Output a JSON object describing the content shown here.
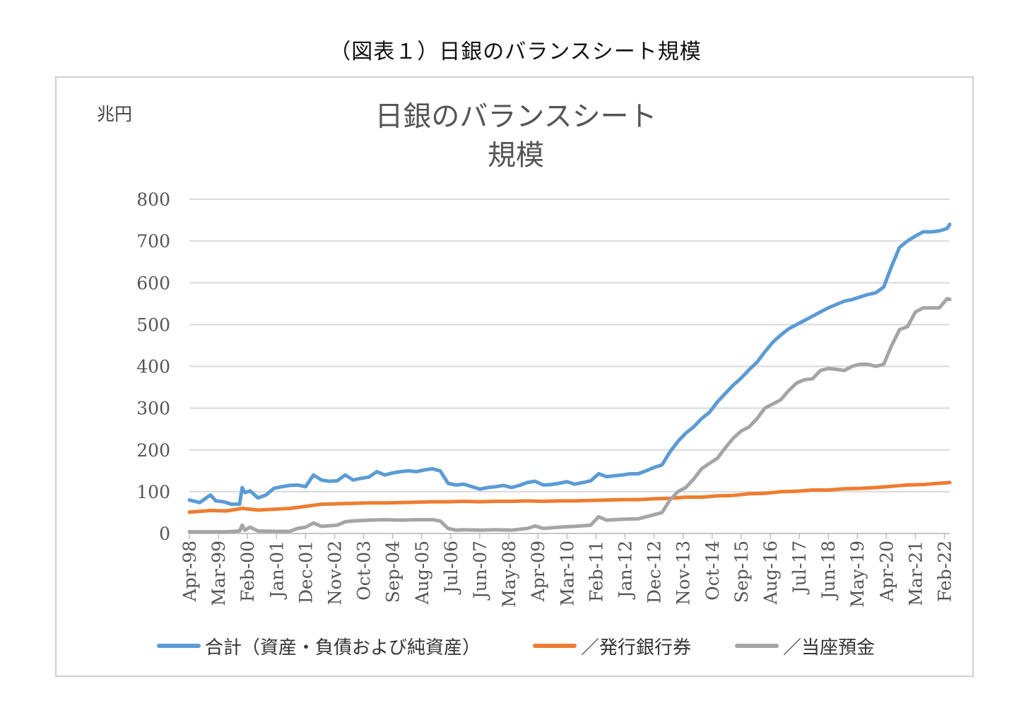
{
  "figure": {
    "caption": "（図表１）日銀のバランスシート規模"
  },
  "chart_data": {
    "type": "line",
    "title_line1": "日銀のバランスシート",
    "title_line2": "規模",
    "unit_label": "兆円",
    "ylim": [
      0,
      800
    ],
    "y_ticks": [
      "0",
      "100",
      "200",
      "300",
      "400",
      "500",
      "600",
      "700",
      "800"
    ],
    "x_tick_labels": [
      "Apr-98",
      "Mar-99",
      "Feb-00",
      "Jan-01",
      "Dec-01",
      "Nov-02",
      "Oct-03",
      "Sep-04",
      "Aug-05",
      "Jul-06",
      "Jun-07",
      "May-08",
      "Apr-09",
      "Mar-10",
      "Feb-11",
      "Jan-12",
      "Dec-12",
      "Nov-13",
      "Oct-14",
      "Sep-15",
      "Aug-16",
      "Jul-17",
      "Jun-18",
      "May-19",
      "Apr-20",
      "Mar-21",
      "Feb-22"
    ],
    "x_start": "1998-04",
    "x_end": "2022-04",
    "grid": true,
    "legend_position": "bottom",
    "series": [
      {
        "name": "合計（資産・負債および純資産）",
        "color": "#5b9bd5",
        "points": [
          [
            "1998-04",
            80
          ],
          [
            "1998-08",
            74
          ],
          [
            "1998-11",
            88
          ],
          [
            "1998-12",
            92
          ],
          [
            "1999-02",
            78
          ],
          [
            "1999-05",
            76
          ],
          [
            "1999-08",
            70
          ],
          [
            "1999-11",
            70
          ],
          [
            "1999-12",
            110
          ],
          [
            "2000-01",
            98
          ],
          [
            "2000-03",
            102
          ],
          [
            "2000-06",
            85
          ],
          [
            "2000-09",
            92
          ],
          [
            "2000-12",
            108
          ],
          [
            "2001-03",
            112
          ],
          [
            "2001-06",
            115
          ],
          [
            "2001-09",
            116
          ],
          [
            "2001-12",
            112
          ],
          [
            "2002-03",
            140
          ],
          [
            "2002-06",
            128
          ],
          [
            "2002-09",
            125
          ],
          [
            "2002-12",
            126
          ],
          [
            "2003-03",
            140
          ],
          [
            "2003-06",
            128
          ],
          [
            "2003-09",
            132
          ],
          [
            "2003-12",
            135
          ],
          [
            "2004-03",
            148
          ],
          [
            "2004-06",
            140
          ],
          [
            "2004-09",
            145
          ],
          [
            "2004-12",
            148
          ],
          [
            "2005-03",
            150
          ],
          [
            "2005-06",
            148
          ],
          [
            "2005-09",
            152
          ],
          [
            "2005-12",
            155
          ],
          [
            "2006-03",
            150
          ],
          [
            "2006-06",
            120
          ],
          [
            "2006-09",
            116
          ],
          [
            "2006-12",
            118
          ],
          [
            "2007-03",
            112
          ],
          [
            "2007-06",
            106
          ],
          [
            "2007-09",
            110
          ],
          [
            "2007-12",
            112
          ],
          [
            "2008-03",
            115
          ],
          [
            "2008-06",
            110
          ],
          [
            "2008-09",
            115
          ],
          [
            "2008-12",
            122
          ],
          [
            "2009-03",
            125
          ],
          [
            "2009-06",
            116
          ],
          [
            "2009-09",
            117
          ],
          [
            "2009-12",
            120
          ],
          [
            "2010-03",
            124
          ],
          [
            "2010-06",
            118
          ],
          [
            "2010-09",
            122
          ],
          [
            "2010-12",
            126
          ],
          [
            "2011-03",
            143
          ],
          [
            "2011-06",
            136
          ],
          [
            "2011-09",
            138
          ],
          [
            "2011-12",
            140
          ],
          [
            "2012-03",
            143
          ],
          [
            "2012-06",
            143
          ],
          [
            "2012-09",
            150
          ],
          [
            "2012-12",
            158
          ],
          [
            "2013-03",
            164
          ],
          [
            "2013-06",
            195
          ],
          [
            "2013-09",
            220
          ],
          [
            "2013-12",
            240
          ],
          [
            "2014-03",
            255
          ],
          [
            "2014-06",
            275
          ],
          [
            "2014-09",
            290
          ],
          [
            "2014-12",
            315
          ],
          [
            "2015-03",
            335
          ],
          [
            "2015-06",
            355
          ],
          [
            "2015-09",
            372
          ],
          [
            "2015-12",
            392
          ],
          [
            "2016-03",
            410
          ],
          [
            "2016-06",
            435
          ],
          [
            "2016-09",
            458
          ],
          [
            "2016-12",
            475
          ],
          [
            "2017-03",
            490
          ],
          [
            "2017-06",
            500
          ],
          [
            "2017-09",
            510
          ],
          [
            "2017-12",
            520
          ],
          [
            "2018-03",
            530
          ],
          [
            "2018-06",
            540
          ],
          [
            "2018-09",
            548
          ],
          [
            "2018-12",
            556
          ],
          [
            "2019-03",
            560
          ],
          [
            "2019-06",
            566
          ],
          [
            "2019-09",
            572
          ],
          [
            "2019-12",
            576
          ],
          [
            "2020-03",
            590
          ],
          [
            "2020-06",
            640
          ],
          [
            "2020-09",
            685
          ],
          [
            "2020-12",
            700
          ],
          [
            "2021-03",
            712
          ],
          [
            "2021-06",
            722
          ],
          [
            "2021-09",
            722
          ],
          [
            "2021-12",
            724
          ],
          [
            "2022-03",
            730
          ],
          [
            "2022-04",
            740
          ]
        ]
      },
      {
        "name": "／発行銀行券",
        "color": "#ed7d31",
        "points": [
          [
            "1998-04",
            51
          ],
          [
            "1998-12",
            55
          ],
          [
            "1999-06",
            54
          ],
          [
            "1999-12",
            60
          ],
          [
            "2000-06",
            56
          ],
          [
            "2000-12",
            58
          ],
          [
            "2001-06",
            60
          ],
          [
            "2001-12",
            65
          ],
          [
            "2002-06",
            70
          ],
          [
            "2002-12",
            71
          ],
          [
            "2003-06",
            72
          ],
          [
            "2003-12",
            73
          ],
          [
            "2004-06",
            73
          ],
          [
            "2004-12",
            74
          ],
          [
            "2005-06",
            75
          ],
          [
            "2005-12",
            76
          ],
          [
            "2006-06",
            76
          ],
          [
            "2006-12",
            77
          ],
          [
            "2007-06",
            76
          ],
          [
            "2007-12",
            77
          ],
          [
            "2008-06",
            77
          ],
          [
            "2008-12",
            78
          ],
          [
            "2009-06",
            77
          ],
          [
            "2009-12",
            78
          ],
          [
            "2010-06",
            78
          ],
          [
            "2010-12",
            79
          ],
          [
            "2011-06",
            80
          ],
          [
            "2011-12",
            81
          ],
          [
            "2012-06",
            81
          ],
          [
            "2012-12",
            83
          ],
          [
            "2013-06",
            84
          ],
          [
            "2013-12",
            87
          ],
          [
            "2014-06",
            87
          ],
          [
            "2014-12",
            90
          ],
          [
            "2015-06",
            91
          ],
          [
            "2015-12",
            95
          ],
          [
            "2016-06",
            96
          ],
          [
            "2016-12",
            100
          ],
          [
            "2017-06",
            101
          ],
          [
            "2017-12",
            104
          ],
          [
            "2018-06",
            104
          ],
          [
            "2018-12",
            107
          ],
          [
            "2019-06",
            108
          ],
          [
            "2019-12",
            110
          ],
          [
            "2020-06",
            113
          ],
          [
            "2020-12",
            116
          ],
          [
            "2021-06",
            117
          ],
          [
            "2021-12",
            120
          ],
          [
            "2022-04",
            122
          ]
        ]
      },
      {
        "name": "／当座預金",
        "color": "#a5a5a5",
        "points": [
          [
            "1998-04",
            4
          ],
          [
            "1998-12",
            4
          ],
          [
            "1999-06",
            4
          ],
          [
            "1999-11",
            6
          ],
          [
            "1999-12",
            20
          ],
          [
            "2000-01",
            8
          ],
          [
            "2000-03",
            15
          ],
          [
            "2000-06",
            6
          ],
          [
            "2000-12",
            5
          ],
          [
            "2001-06",
            5
          ],
          [
            "2001-09",
            12
          ],
          [
            "2001-12",
            15
          ],
          [
            "2002-03",
            25
          ],
          [
            "2002-06",
            17
          ],
          [
            "2002-12",
            20
          ],
          [
            "2003-03",
            28
          ],
          [
            "2003-06",
            30
          ],
          [
            "2003-12",
            32
          ],
          [
            "2004-06",
            33
          ],
          [
            "2004-12",
            32
          ],
          [
            "2005-06",
            33
          ],
          [
            "2005-12",
            33
          ],
          [
            "2006-03",
            30
          ],
          [
            "2006-06",
            12
          ],
          [
            "2006-09",
            8
          ],
          [
            "2006-12",
            9
          ],
          [
            "2007-06",
            8
          ],
          [
            "2007-12",
            9
          ],
          [
            "2008-06",
            8
          ],
          [
            "2008-12",
            12
          ],
          [
            "2009-03",
            18
          ],
          [
            "2009-06",
            12
          ],
          [
            "2009-12",
            15
          ],
          [
            "2010-06",
            17
          ],
          [
            "2010-12",
            20
          ],
          [
            "2011-03",
            40
          ],
          [
            "2011-06",
            32
          ],
          [
            "2011-12",
            34
          ],
          [
            "2012-06",
            35
          ],
          [
            "2012-12",
            45
          ],
          [
            "2013-03",
            50
          ],
          [
            "2013-06",
            80
          ],
          [
            "2013-09",
            100
          ],
          [
            "2013-12",
            110
          ],
          [
            "2014-03",
            130
          ],
          [
            "2014-06",
            155
          ],
          [
            "2014-09",
            168
          ],
          [
            "2014-12",
            180
          ],
          [
            "2015-03",
            205
          ],
          [
            "2015-06",
            228
          ],
          [
            "2015-09",
            245
          ],
          [
            "2015-12",
            255
          ],
          [
            "2016-03",
            275
          ],
          [
            "2016-06",
            300
          ],
          [
            "2016-09",
            310
          ],
          [
            "2016-12",
            320
          ],
          [
            "2017-03",
            342
          ],
          [
            "2017-06",
            360
          ],
          [
            "2017-09",
            368
          ],
          [
            "2017-12",
            370
          ],
          [
            "2018-03",
            390
          ],
          [
            "2018-06",
            395
          ],
          [
            "2018-09",
            393
          ],
          [
            "2018-12",
            390
          ],
          [
            "2019-03",
            400
          ],
          [
            "2019-06",
            405
          ],
          [
            "2019-09",
            405
          ],
          [
            "2019-12",
            400
          ],
          [
            "2020-03",
            405
          ],
          [
            "2020-06",
            450
          ],
          [
            "2020-09",
            488
          ],
          [
            "2020-12",
            495
          ],
          [
            "2021-03",
            530
          ],
          [
            "2021-06",
            540
          ],
          [
            "2021-09",
            540
          ],
          [
            "2021-12",
            540
          ],
          [
            "2022-03",
            562
          ],
          [
            "2022-04",
            560
          ]
        ]
      }
    ]
  }
}
